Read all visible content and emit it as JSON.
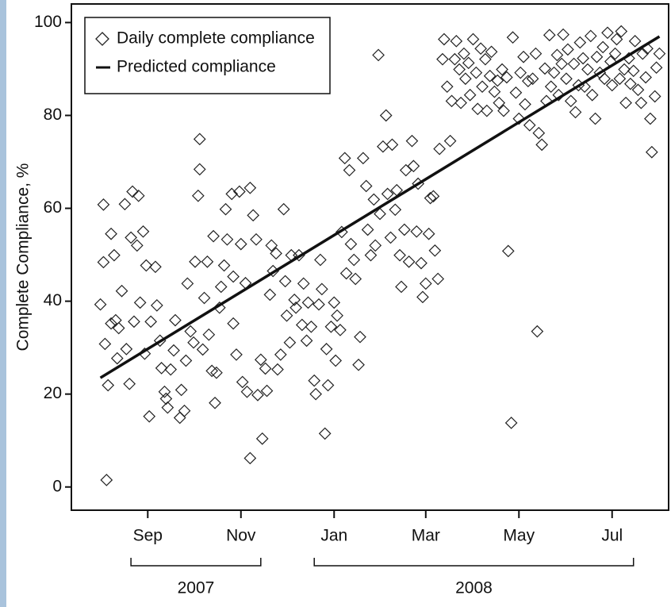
{
  "chart_data": {
    "type": "scatter",
    "ylabel": "Complete Compliance, %",
    "xlim": [
      -50,
      341
    ],
    "ylim": [
      -5,
      104
    ],
    "yticks": [
      0,
      20,
      40,
      60,
      80,
      100
    ],
    "xticks": [
      {
        "value": 0,
        "label": "Sep"
      },
      {
        "value": 61,
        "label": "Nov"
      },
      {
        "value": 122,
        "label": "Jan"
      },
      {
        "value": 182,
        "label": "Mar"
      },
      {
        "value": 243,
        "label": "May"
      },
      {
        "value": 304,
        "label": "Jul"
      }
    ],
    "year_groups": [
      {
        "label": "2007",
        "range": [
          -11,
          74
        ]
      },
      {
        "label": "2008",
        "range": [
          109,
          318
        ]
      }
    ],
    "legend": "upper left",
    "series": [
      {
        "name": "Daily complete compliance",
        "type": "scatter",
        "marker": "diamond",
        "color": "#222",
        "x": [
          -31,
          -29,
          -29,
          -28,
          -27,
          -26,
          -24,
          -24,
          -22,
          -21,
          -20,
          -19,
          -17,
          -15,
          -14,
          -12,
          -11,
          -10,
          -9,
          -7,
          -6,
          -5,
          -3,
          -2,
          -1,
          1,
          2,
          5,
          6,
          8,
          9,
          11,
          12,
          13,
          15,
          17,
          18,
          21,
          22,
          24,
          25,
          26,
          28,
          30,
          31,
          33,
          34,
          34,
          36,
          37,
          39,
          40,
          42,
          43,
          44,
          45,
          47,
          48,
          50,
          51,
          52,
          55,
          56,
          56,
          58,
          60,
          61,
          62,
          64,
          65,
          67,
          67,
          69,
          71,
          72,
          74,
          75,
          77,
          78,
          80,
          81,
          82,
          84,
          85,
          87,
          89,
          90,
          91,
          93,
          94,
          96,
          97,
          99,
          101,
          102,
          104,
          105,
          107,
          109,
          110,
          112,
          113,
          114,
          116,
          117,
          118,
          120,
          122,
          123,
          124,
          126,
          127,
          129,
          130,
          132,
          133,
          135,
          136,
          138,
          139,
          141,
          143,
          144,
          146,
          148,
          149,
          151,
          152,
          154,
          156,
          157,
          159,
          160,
          162,
          163,
          165,
          166,
          168,
          169,
          171,
          173,
          174,
          176,
          177,
          179,
          180,
          182,
          184,
          185,
          187,
          188,
          190,
          191,
          193,
          194,
          196,
          198,
          199,
          201,
          202,
          204,
          205,
          207,
          208,
          210,
          211,
          213,
          215,
          216,
          218,
          219,
          221,
          222,
          224,
          225,
          227,
          229,
          230,
          232,
          233,
          235,
          236,
          238,
          239,
          241,
          243,
          244,
          246,
          247,
          249,
          250,
          252,
          254,
          255,
          256,
          258,
          260,
          261,
          263,
          264,
          266,
          268,
          269,
          271,
          272,
          274,
          275,
          277,
          279,
          280,
          282,
          283,
          285,
          286,
          288,
          290,
          291,
          293,
          294,
          296,
          298,
          299,
          301,
          303,
          304,
          306,
          307,
          309,
          310,
          312,
          313,
          315,
          316,
          318,
          319,
          321,
          323,
          324,
          326,
          327,
          329,
          330,
          332,
          333,
          335
        ],
        "values": [
          39.3,
          60.8,
          48.4,
          30.8,
          1.5,
          21.9,
          54.5,
          35.2,
          49.9,
          35.9,
          27.7,
          34.2,
          42.2,
          60.9,
          29.7,
          22.2,
          53.7,
          63.6,
          35.6,
          52,
          62.7,
          39.7,
          55,
          28.7,
          47.7,
          15.2,
          35.6,
          47.4,
          39.1,
          31.5,
          25.6,
          20.5,
          19,
          17.1,
          25.3,
          29.4,
          35.9,
          14.9,
          20.9,
          16.4,
          27.2,
          43.8,
          33.5,
          31.1,
          48.5,
          62.7,
          74.9,
          68.4,
          29.6,
          40.7,
          48.5,
          32.8,
          25,
          54,
          18.1,
          24.6,
          38.6,
          43.1,
          47.7,
          59.8,
          53.3,
          63.1,
          45.3,
          35.2,
          28.5,
          63.6,
          52.3,
          22.6,
          43.9,
          20.5,
          6.2,
          64.4,
          58.5,
          53.3,
          19.8,
          27.4,
          10.4,
          25.5,
          20.7,
          41.4,
          52,
          46.5,
          50.3,
          25.3,
          28.5,
          59.8,
          44.3,
          36.9,
          31.1,
          49.9,
          40.3,
          38.6,
          49.9,
          34.9,
          43.8,
          31.5,
          39.7,
          34.5,
          22.9,
          20,
          39.3,
          48.9,
          42.6,
          11.5,
          29.7,
          21.9,
          34.5,
          39.7,
          27.2,
          36.9,
          33.8,
          54.9,
          70.8,
          46,
          68.2,
          52.3,
          48.9,
          44.8,
          26.3,
          32.3,
          70.8,
          64.8,
          55.4,
          49.9,
          61.9,
          52,
          93,
          58.8,
          73.3,
          80,
          63.1,
          53.7,
          73.7,
          59.7,
          63.9,
          49.9,
          43.1,
          55.4,
          68.2,
          48.5,
          74.5,
          69.1,
          55,
          65.3,
          48.2,
          40.9,
          43.8,
          54.5,
          62.2,
          62.6,
          50.9,
          44.8,
          72.8,
          92.1,
          96.4,
          86.2,
          74.5,
          83.1,
          92.1,
          96,
          89.9,
          82.7,
          93.3,
          87.9,
          91.3,
          84.4,
          96.4,
          89.2,
          81.4,
          94.4,
          86.2,
          92.1,
          81,
          88.5,
          93.7,
          85.1,
          87.5,
          82.7,
          89.9,
          81,
          88.2,
          50.8,
          13.8,
          96.8,
          84.9,
          79.3,
          89.2,
          92.6,
          82.4,
          87.4,
          77.9,
          87.9,
          93.3,
          33.5,
          76.2,
          73.7,
          90.1,
          83.1,
          97.3,
          86.2,
          89.2,
          93,
          84.4,
          91.1,
          97.4,
          87.9,
          94.2,
          83.1,
          91.1,
          80.7,
          86.5,
          95.7,
          92.3,
          86.2,
          89.9,
          97.1,
          84.4,
          79.3,
          92.6,
          89.2,
          94.7,
          87.9,
          97.8,
          91.6,
          86.5,
          93.3,
          96.4,
          87.9,
          98.1,
          89.9,
          82.7,
          92.3,
          86.8,
          89.6,
          96,
          85.5,
          82.7,
          93.3,
          88.2,
          94.4,
          79.3,
          72.1,
          84.1,
          90.3,
          93.3
        ]
      },
      {
        "name": "Predicted compliance",
        "type": "line",
        "color": "#111",
        "x": [
          -31,
          335
        ],
        "values": [
          23.5,
          97
        ]
      }
    ]
  }
}
